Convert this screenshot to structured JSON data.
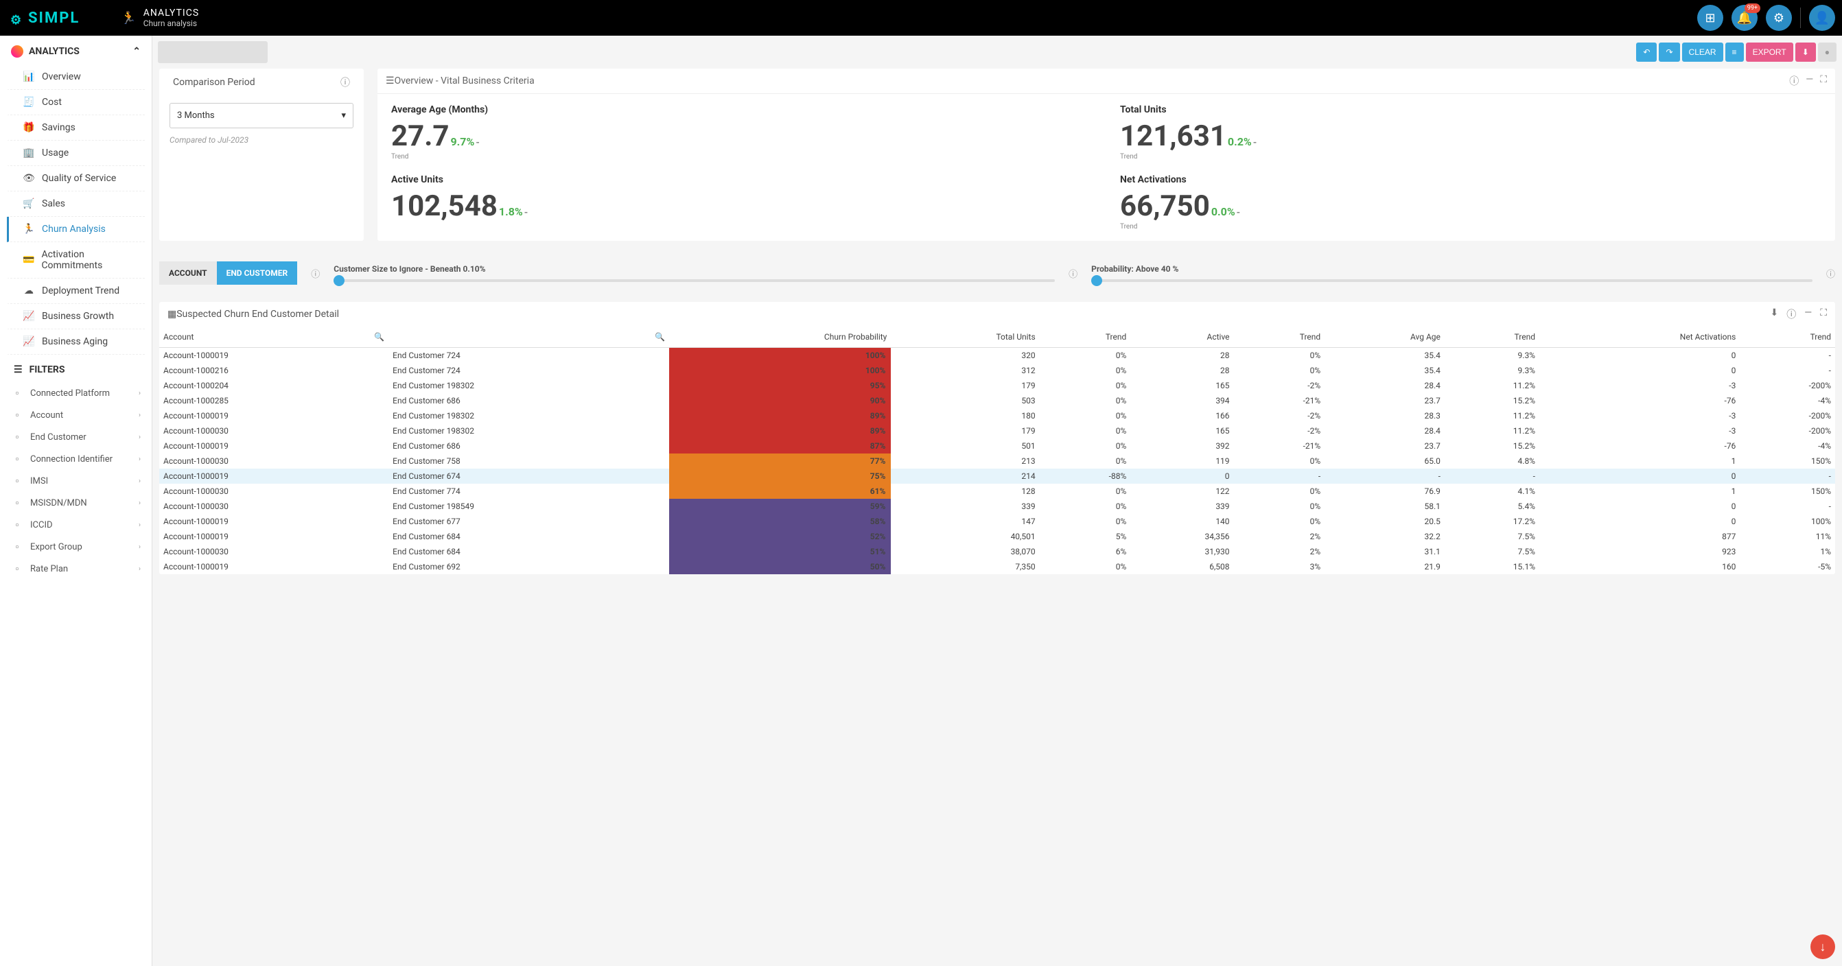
{
  "header": {
    "logo": "SIMPL",
    "section": "ANALYTICS",
    "page": "Churn analysis",
    "notification_badge": "99+"
  },
  "sidebar": {
    "section_title": "ANALYTICS",
    "items": [
      {
        "label": "Overview",
        "icon": "bar"
      },
      {
        "label": "Cost",
        "icon": "receipt"
      },
      {
        "label": "Savings",
        "icon": "gift"
      },
      {
        "label": "Usage",
        "icon": "building"
      },
      {
        "label": "Quality of Service",
        "icon": "eye"
      },
      {
        "label": "Sales",
        "icon": "cart"
      },
      {
        "label": "Churn Analysis",
        "icon": "run",
        "active": true
      },
      {
        "label": "Activation Commitments",
        "icon": "card"
      },
      {
        "label": "Deployment Trend",
        "icon": "cloud"
      },
      {
        "label": "Business Growth",
        "icon": "trend"
      },
      {
        "label": "Business Aging",
        "icon": "trend"
      }
    ],
    "filters_title": "FILTERS",
    "filters": [
      {
        "label": "Connected Platform"
      },
      {
        "label": "Account"
      },
      {
        "label": "End Customer"
      },
      {
        "label": "Connection Identifier"
      },
      {
        "label": "IMSI"
      },
      {
        "label": "MSISDN/MDN"
      },
      {
        "label": "ICCID"
      },
      {
        "label": "Export Group"
      },
      {
        "label": "Rate Plan"
      }
    ]
  },
  "toolbar": {
    "clear": "CLEAR",
    "export": "EXPORT"
  },
  "comparison": {
    "title": "Comparison Period",
    "selected": "3 Months",
    "note": "Compared to Jul-2023"
  },
  "overview": {
    "title": "Overview - Vital Business Criteria",
    "kpis": [
      {
        "label": "Average Age (Months)",
        "value": "27.7",
        "delta": "9.7%",
        "delta_color": "#4caf50",
        "trend": "Trend"
      },
      {
        "label": "Total Units",
        "value": "121,631",
        "delta": "0.2%",
        "delta_color": "#4caf50",
        "trend": "Trend"
      },
      {
        "label": "Active Units",
        "value": "102,548",
        "delta": "1.8%",
        "delta_color": "#4caf50",
        "trend": ""
      },
      {
        "label": "Net Activations",
        "value": "66,750",
        "delta": "0.0%",
        "delta_color": "#4caf50",
        "trend": "Trend"
      }
    ]
  },
  "tabs": {
    "account": "ACCOUNT",
    "end_customer": "END CUSTOMER"
  },
  "sliders": {
    "size": "Customer Size to Ignore - Beneath 0.10%",
    "prob": "Probability: Above 40 %"
  },
  "table": {
    "title": "Suspected Churn End Customer Detail",
    "columns": [
      "Account",
      "",
      "Churn Probability",
      "Total Units",
      "Trend",
      "Active",
      "Trend",
      "Avg Age",
      "Trend",
      "Net Activations",
      "Trend"
    ],
    "colors": {
      "red": "#c9302c",
      "orange": "#e67e22",
      "purple": "#5c4b8a",
      "highlight_row": "#e6f4fb"
    },
    "rows": [
      {
        "acct": "Account-1000019",
        "cust": "End Customer 724",
        "churn": "100%",
        "churn_bg": "#c9302c",
        "tu": "320",
        "t1": "0%",
        "act": "28",
        "t2": "0%",
        "age": "35.4",
        "t3": "9.3%",
        "na": "0",
        "t4": "-"
      },
      {
        "acct": "Account-1000216",
        "cust": "End Customer 724",
        "churn": "100%",
        "churn_bg": "#c9302c",
        "tu": "312",
        "t1": "0%",
        "act": "28",
        "t2": "0%",
        "age": "35.4",
        "t3": "9.3%",
        "na": "0",
        "t4": "-"
      },
      {
        "acct": "Account-1000204",
        "cust": "End Customer 198302",
        "churn": "95%",
        "churn_bg": "#c9302c",
        "tu": "179",
        "t1": "0%",
        "act": "165",
        "t2": "-2%",
        "age": "28.4",
        "t3": "11.2%",
        "na": "-3",
        "t4": "-200%"
      },
      {
        "acct": "Account-1000285",
        "cust": "End Customer 686",
        "churn": "90%",
        "churn_bg": "#c9302c",
        "tu": "503",
        "t1": "0%",
        "act": "394",
        "t2": "-21%",
        "age": "23.7",
        "t3": "15.2%",
        "na": "-76",
        "t4": "-4%"
      },
      {
        "acct": "Account-1000019",
        "cust": "End Customer 198302",
        "churn": "89%",
        "churn_bg": "#c9302c",
        "tu": "180",
        "t1": "0%",
        "act": "166",
        "t2": "-2%",
        "age": "28.3",
        "t3": "11.2%",
        "na": "-3",
        "t4": "-200%"
      },
      {
        "acct": "Account-1000030",
        "cust": "End Customer 198302",
        "churn": "89%",
        "churn_bg": "#c9302c",
        "tu": "179",
        "t1": "0%",
        "act": "165",
        "t2": "-2%",
        "age": "28.4",
        "t3": "11.2%",
        "na": "-3",
        "t4": "-200%"
      },
      {
        "acct": "Account-1000019",
        "cust": "End Customer 686",
        "churn": "87%",
        "churn_bg": "#c9302c",
        "tu": "501",
        "t1": "0%",
        "act": "392",
        "t2": "-21%",
        "age": "23.7",
        "t3": "15.2%",
        "na": "-76",
        "t4": "-4%"
      },
      {
        "acct": "Account-1000030",
        "cust": "End Customer 758",
        "churn": "77%",
        "churn_bg": "#e67e22",
        "tu": "213",
        "t1": "0%",
        "act": "119",
        "t2": "0%",
        "age": "65.0",
        "t3": "4.8%",
        "na": "1",
        "t4": "150%"
      },
      {
        "acct": "Account-1000019",
        "cust": "End Customer 674",
        "churn": "75%",
        "churn_bg": "#e67e22",
        "tu": "214",
        "t1": "-88%",
        "act": "0",
        "t2": "-",
        "age": "-",
        "t3": "-",
        "na": "0",
        "t4": "-",
        "hl": true
      },
      {
        "acct": "Account-1000030",
        "cust": "End Customer 774",
        "churn": "61%",
        "churn_bg": "#e67e22",
        "tu": "128",
        "t1": "0%",
        "act": "122",
        "t2": "0%",
        "age": "76.9",
        "t3": "4.1%",
        "na": "1",
        "t4": "150%"
      },
      {
        "acct": "Account-1000030",
        "cust": "End Customer 198549",
        "churn": "59%",
        "churn_bg": "#5c4b8a",
        "tu": "339",
        "t1": "0%",
        "act": "339",
        "t2": "0%",
        "age": "58.1",
        "t3": "5.4%",
        "na": "0",
        "t4": "-"
      },
      {
        "acct": "Account-1000019",
        "cust": "End Customer 677",
        "churn": "58%",
        "churn_bg": "#5c4b8a",
        "tu": "147",
        "t1": "0%",
        "act": "140",
        "t2": "0%",
        "age": "20.5",
        "t3": "17.2%",
        "na": "0",
        "t4": "100%"
      },
      {
        "acct": "Account-1000019",
        "cust": "End Customer 684",
        "churn": "52%",
        "churn_bg": "#5c4b8a",
        "tu": "40,501",
        "t1": "5%",
        "act": "34,356",
        "t2": "2%",
        "age": "32.2",
        "t3": "7.5%",
        "na": "877",
        "t4": "11%"
      },
      {
        "acct": "Account-1000030",
        "cust": "End Customer 684",
        "churn": "51%",
        "churn_bg": "#5c4b8a",
        "tu": "38,070",
        "t1": "6%",
        "act": "31,930",
        "t2": "2%",
        "age": "31.1",
        "t3": "7.5%",
        "na": "923",
        "t4": "1%"
      },
      {
        "acct": "Account-1000019",
        "cust": "End Customer 692",
        "churn": "50%",
        "churn_bg": "#5c4b8a",
        "tu": "7,350",
        "t1": "0%",
        "act": "6,508",
        "t2": "3%",
        "age": "21.9",
        "t3": "15.1%",
        "na": "160",
        "t4": "-5%"
      }
    ]
  }
}
